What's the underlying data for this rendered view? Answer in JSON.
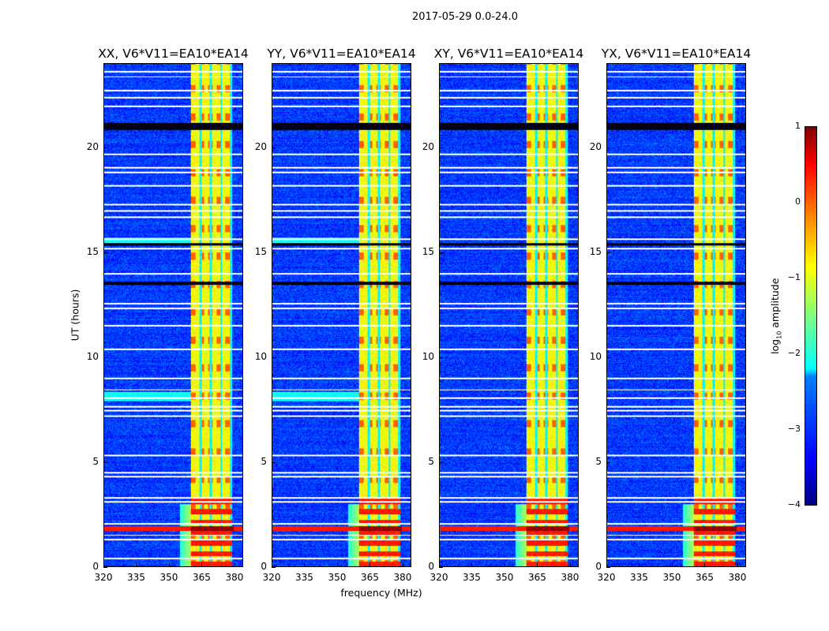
{
  "chart_data": {
    "type": "heatmap",
    "suptitle": "2017-05-29 0.0-24.0",
    "panels": [
      {
        "title": "XX, V6*V11=EA10*EA14",
        "pol": "XX"
      },
      {
        "title": "YY, V6*V11=EA10*EA14",
        "pol": "YY"
      },
      {
        "title": "XY, V6*V11=EA10*EA14",
        "pol": "XY"
      },
      {
        "title": "YX, V6*V11=EA10*EA14",
        "pol": "YX"
      }
    ],
    "xlabel": "frequency (MHz)",
    "ylabel": "UT (hours)",
    "xlim": [
      320,
      384
    ],
    "ylim": [
      0,
      24
    ],
    "xticks": [
      "320",
      "335",
      "350",
      "365",
      "380"
    ],
    "xtick_values": [
      320,
      335,
      350,
      365,
      380
    ],
    "yticks": [
      "0",
      "5",
      "10",
      "15",
      "20"
    ],
    "ytick_values": [
      0,
      5,
      10,
      15,
      20
    ],
    "colorbar": {
      "label": "log10 amplitude",
      "label_main": "log",
      "label_sub": "10",
      "label_rest": " amplitude",
      "range": [
        -4,
        1
      ],
      "ticks": [
        "1",
        "0",
        "−1",
        "−2",
        "−3",
        "−4"
      ],
      "tick_values": [
        1,
        0,
        -1,
        -2,
        -3,
        -4
      ],
      "colormap": "jet"
    },
    "strong_band_mhz": [
      360,
      379
    ],
    "band_gaps_mhz": [
      364.5,
      369.2,
      374,
      378.6
    ],
    "rfi_burst_hours": [
      1.7,
      1.95
    ],
    "background_level": -3.2,
    "band_level": -0.9,
    "flagged_hours": [
      0.4,
      1.3,
      1.5,
      2.05,
      3.1,
      3.3,
      4.3,
      4.5,
      5.3,
      7.2,
      7.45,
      7.65,
      8.05,
      8.45,
      9.0,
      10.4,
      11.5,
      12.35,
      12.55,
      14.0,
      15.2,
      15.65,
      16.7,
      17.0,
      17.3,
      18.2,
      18.85,
      19.05,
      19.7,
      22.0,
      22.4,
      22.75,
      23.4,
      23.65
    ],
    "dropout_hours": [
      [
        20.85,
        21.2
      ],
      [
        13.45,
        13.6
      ],
      [
        15.35,
        15.45
      ]
    ]
  }
}
